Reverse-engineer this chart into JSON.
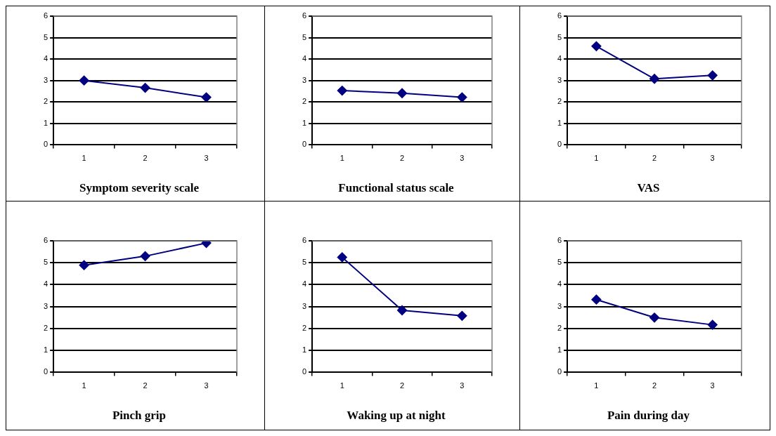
{
  "chart_data": [
    {
      "type": "line",
      "title": "Symptom severity scale",
      "categories": [
        "1",
        "2",
        "3"
      ],
      "series": [
        {
          "color": "#000080",
          "values": [
            3.0,
            2.66,
            2.22
          ]
        }
      ],
      "ylim": [
        0,
        6
      ],
      "yticks": [
        0,
        1,
        2,
        3,
        4,
        5,
        6
      ],
      "grid": "y",
      "legend": false,
      "marker": "diamond"
    },
    {
      "type": "line",
      "title": "Functional status scale",
      "categories": [
        "1",
        "2",
        "3"
      ],
      "series": [
        {
          "color": "#000080",
          "values": [
            2.53,
            2.41,
            2.22
          ]
        }
      ],
      "ylim": [
        0,
        6
      ],
      "yticks": [
        0,
        1,
        2,
        3,
        4,
        5,
        6
      ],
      "grid": "y",
      "legend": false,
      "marker": "diamond"
    },
    {
      "type": "line",
      "title": "VAS",
      "categories": [
        "1",
        "2",
        "3"
      ],
      "series": [
        {
          "color": "#000080",
          "values": [
            4.6,
            3.08,
            3.24
          ]
        }
      ],
      "ylim": [
        0,
        6
      ],
      "yticks": [
        0,
        1,
        2,
        3,
        4,
        5,
        6
      ],
      "grid": "y",
      "legend": false,
      "marker": "diamond"
    },
    {
      "type": "line",
      "title": "Pinch grip",
      "categories": [
        "1",
        "2",
        "3"
      ],
      "series": [
        {
          "color": "#000080",
          "values": [
            4.89,
            5.3,
            5.9
          ]
        }
      ],
      "ylim": [
        0,
        6
      ],
      "yticks": [
        0,
        1,
        2,
        3,
        4,
        5,
        6
      ],
      "grid": "y",
      "legend": false,
      "marker": "diamond"
    },
    {
      "type": "line",
      "title": "Waking up at night",
      "categories": [
        "1",
        "2",
        "3"
      ],
      "series": [
        {
          "color": "#000080",
          "values": [
            5.25,
            2.83,
            2.58
          ]
        }
      ],
      "ylim": [
        0,
        6
      ],
      "yticks": [
        0,
        1,
        2,
        3,
        4,
        5,
        6
      ],
      "grid": "y",
      "legend": false,
      "marker": "diamond"
    },
    {
      "type": "line",
      "title": "Pain during day",
      "categories": [
        "1",
        "2",
        "3"
      ],
      "series": [
        {
          "color": "#000080",
          "values": [
            3.32,
            2.5,
            2.17
          ]
        }
      ],
      "ylim": [
        0,
        6
      ],
      "yticks": [
        0,
        1,
        2,
        3,
        4,
        5,
        6
      ],
      "grid": "y",
      "legend": false,
      "marker": "diamond"
    }
  ]
}
